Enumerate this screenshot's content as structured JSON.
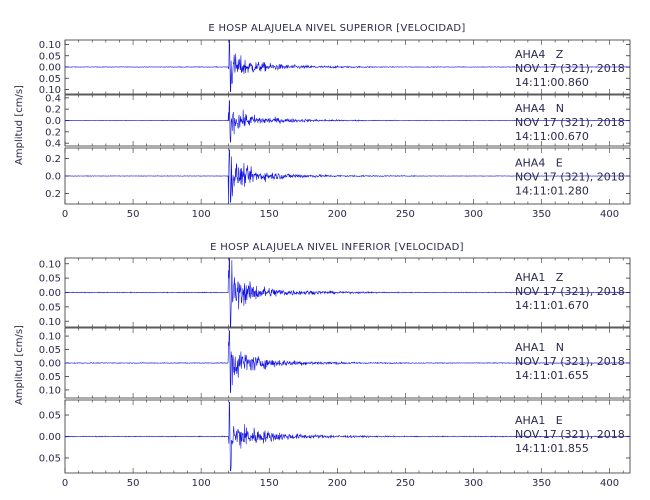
{
  "chart_data": [
    {
      "type": "line",
      "title": "E HOSP ALAJUELA NIVEL SUPERIOR [VELOCIDAD]",
      "xlabel": "",
      "ylabel": "Amplitud [cm/s]",
      "xlim": [
        0,
        415
      ],
      "xticks": [
        0,
        50,
        100,
        150,
        200,
        250,
        300,
        350,
        400
      ],
      "color": "#1010e0",
      "series": [
        {
          "station": "AHA4",
          "component": "Z",
          "date": "NOV 17 (321), 2018",
          "time": "14:11:00.860",
          "ylim": [
            -0.12,
            0.12
          ],
          "yticks": [
            -0.1,
            -0.05,
            0.0,
            0.05,
            0.1
          ],
          "ytick_labels": [
            "0.10",
            "0.05",
            "0.00",
            "0.05",
            "0.10"
          ],
          "onset_s": 120,
          "peak_pos": 0.12,
          "peak_neg": -0.11,
          "coda_amp": 0.03,
          "noise": 0.002
        },
        {
          "station": "AHA4",
          "component": "N",
          "date": "NOV 17 (321), 2018",
          "time": "14:11:00.670",
          "ylim": [
            -0.45,
            0.45
          ],
          "yticks": [
            -0.4,
            -0.2,
            0.0,
            0.2,
            0.4
          ],
          "ytick_labels": [
            "0.4",
            "0.2",
            "0.0",
            "0.2",
            "0.4"
          ],
          "onset_s": 120,
          "peak_pos": 0.35,
          "peak_neg": -0.38,
          "coda_amp": 0.14,
          "noise": 0.006
        },
        {
          "station": "AHA4",
          "component": "E",
          "date": "NOV 17 (321), 2018",
          "time": "14:11:01.280",
          "ylim": [
            -0.32,
            0.32
          ],
          "yticks": [
            -0.2,
            0.0,
            0.2
          ],
          "ytick_labels": [
            "0.2",
            "0.0",
            "0.2"
          ],
          "onset_s": 120,
          "peak_pos": 0.3,
          "peak_neg": -0.3,
          "coda_amp": 0.12,
          "noise": 0.004
        }
      ]
    },
    {
      "type": "line",
      "title": "E HOSP ALAJUELA NIVEL INFERIOR [VELOCIDAD]",
      "xlabel": "",
      "ylabel": "Amplitud [cm/s]",
      "xlim": [
        0,
        415
      ],
      "xticks": [
        0,
        50,
        100,
        150,
        200,
        250,
        300,
        350,
        400
      ],
      "color": "#1010e0",
      "series": [
        {
          "station": "AHA1",
          "component": "Z",
          "date": "NOV 17 (321), 2018",
          "time": "14:11:01.670",
          "ylim": [
            -0.12,
            0.12
          ],
          "yticks": [
            -0.1,
            -0.05,
            0.0,
            0.05,
            0.1
          ],
          "ytick_labels": [
            "0.10",
            "0.05",
            "0.00",
            "0.05",
            "0.10"
          ],
          "onset_s": 120,
          "peak_pos": 0.12,
          "peak_neg": -0.12,
          "coda_amp": 0.035,
          "noise": 0.002
        },
        {
          "station": "AHA1",
          "component": "N",
          "date": "NOV 17 (321), 2018",
          "time": "14:11:01.655",
          "ylim": [
            -0.13,
            0.13
          ],
          "yticks": [
            -0.1,
            -0.05,
            0.0,
            0.05,
            0.1
          ],
          "ytick_labels": [
            "0.10",
            "0.05",
            "0.00",
            "0.05",
            "0.10"
          ],
          "onset_s": 120,
          "peak_pos": 0.12,
          "peak_neg": -0.11,
          "coda_amp": 0.04,
          "noise": 0.002
        },
        {
          "station": "AHA1",
          "component": "E",
          "date": "NOV 17 (321), 2018",
          "time": "14:11:01.855",
          "ylim": [
            -0.085,
            0.085
          ],
          "yticks": [
            -0.05,
            0.0,
            0.05
          ],
          "ytick_labels": [
            "0.05",
            "0.00",
            "0.05"
          ],
          "onset_s": 120,
          "peak_pos": 0.08,
          "peak_neg": -0.08,
          "coda_amp": 0.03,
          "noise": 0.0015
        }
      ]
    }
  ]
}
